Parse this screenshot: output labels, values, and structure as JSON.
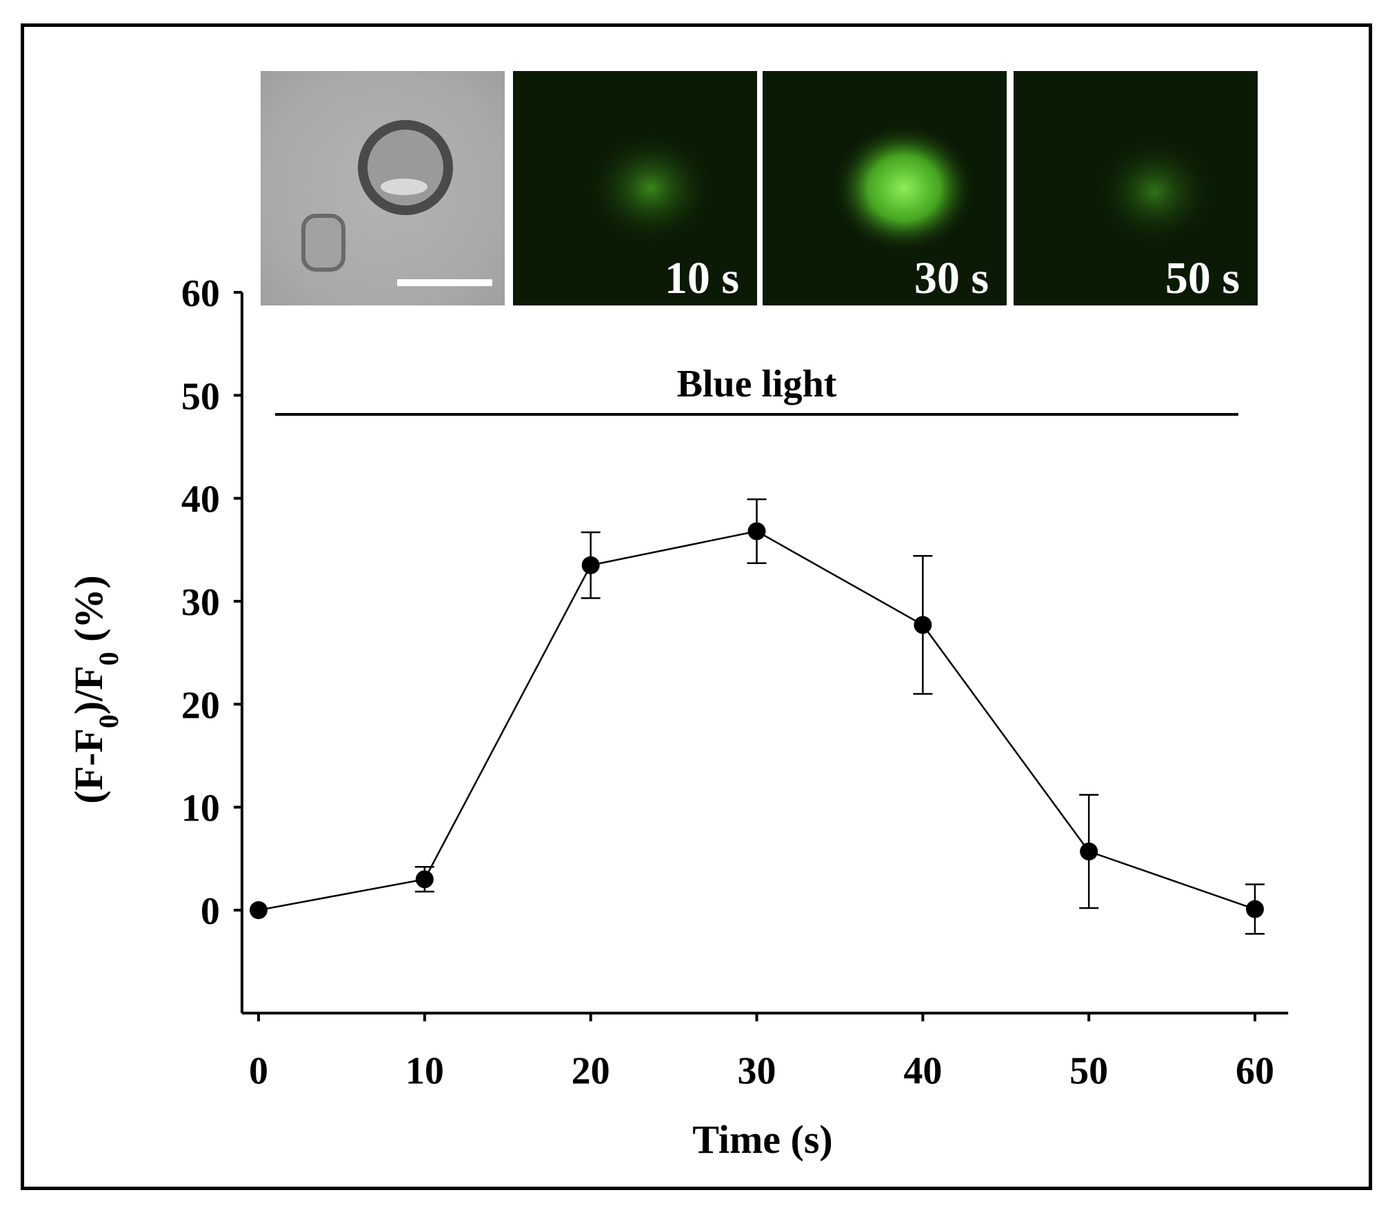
{
  "colors": {
    "fluorescence": "#5ee02c",
    "background_dark": "#0b1a05",
    "axis": "#000000"
  },
  "micrographs": [
    {
      "kind": "brightfield",
      "label": ""
    },
    {
      "kind": "fluorescence",
      "label": "10 s",
      "intensity": 0.55
    },
    {
      "kind": "fluorescence",
      "label": "30 s",
      "intensity": 1.0
    },
    {
      "kind": "fluorescence",
      "label": "50 s",
      "intensity": 0.45
    }
  ],
  "annotation": {
    "text": "Blue light",
    "x_start": 1,
    "x_end": 59
  },
  "chart_data": {
    "type": "line",
    "x": [
      0,
      10,
      20,
      30,
      40,
      50,
      60
    ],
    "series": [
      {
        "values": [
          0,
          3.0,
          33.5,
          36.8,
          27.7,
          5.7,
          0.1
        ],
        "errors": [
          0,
          1.2,
          3.2,
          3.1,
          6.7,
          5.5,
          2.4
        ]
      }
    ],
    "xlabel": "Time (s)",
    "ylabel": "(F-F0)/F0 (%)",
    "xlim": [
      -1,
      62
    ],
    "ylim": [
      -10,
      60
    ],
    "xticks": [
      0,
      10,
      20,
      30,
      40,
      50,
      60
    ],
    "yticks": [
      0,
      10,
      20,
      30,
      40,
      50,
      60
    ],
    "grid": false,
    "legend": "none",
    "markers": "filled-circle"
  }
}
